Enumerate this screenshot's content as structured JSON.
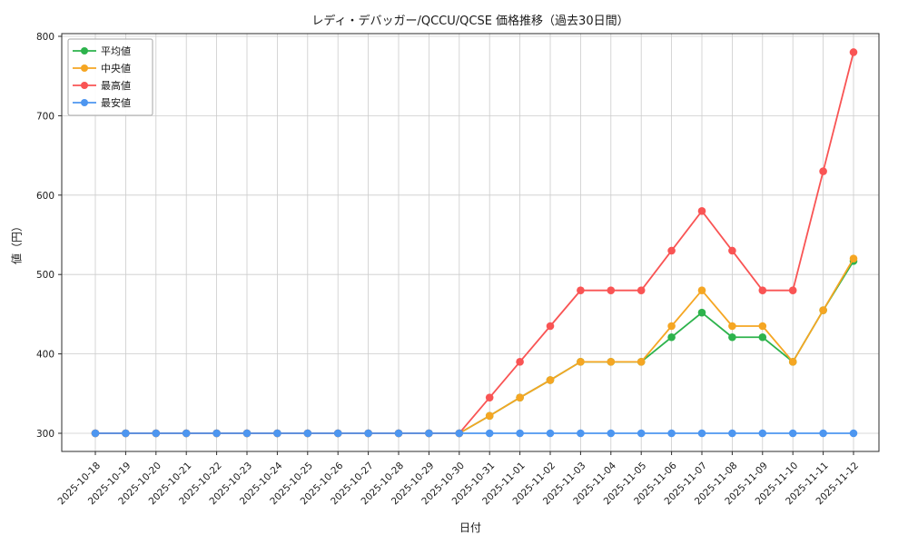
{
  "title": "レディ・デバッガー/QCCU/QCSE 価格推移（過去30日間）",
  "chart_data": {
    "type": "line",
    "title": "レディ・デバッガー/QCCU/QCSE 価格推移（過去30日間）",
    "xlabel": "日付",
    "ylabel": "値（円）",
    "grid": true,
    "legend_position": "upper-left",
    "ylim": [
      300,
      800
    ],
    "yticks": [
      300,
      400,
      500,
      600,
      700,
      800
    ],
    "categories": [
      "2025-10-18",
      "2025-10-19",
      "2025-10-20",
      "2025-10-21",
      "2025-10-22",
      "2025-10-23",
      "2025-10-24",
      "2025-10-25",
      "2025-10-26",
      "2025-10-27",
      "2025-10-28",
      "2025-10-29",
      "2025-10-30",
      "2025-10-31",
      "2025-11-01",
      "2025-11-02",
      "2025-11-03",
      "2025-11-04",
      "2025-11-05",
      "2025-11-06",
      "2025-11-07",
      "2025-11-08",
      "2025-11-09",
      "2025-11-10",
      "2025-11-11",
      "2025-11-12"
    ],
    "series": [
      {
        "name": "平均値",
        "color": "#2db34c",
        "values": [
          300,
          300,
          300,
          300,
          300,
          300,
          300,
          300,
          300,
          300,
          300,
          300,
          300,
          322,
          345,
          367,
          390,
          390,
          390,
          421,
          452,
          421,
          421,
          390,
          455,
          517
        ]
      },
      {
        "name": "中央値",
        "color": "#f5a623",
        "values": [
          300,
          300,
          300,
          300,
          300,
          300,
          300,
          300,
          300,
          300,
          300,
          300,
          300,
          322,
          345,
          367,
          390,
          390,
          390,
          435,
          480,
          435,
          435,
          390,
          455,
          520
        ]
      },
      {
        "name": "最高値",
        "color": "#f95454",
        "values": [
          300,
          300,
          300,
          300,
          300,
          300,
          300,
          300,
          300,
          300,
          300,
          300,
          300,
          345,
          390,
          435,
          480,
          480,
          480,
          530,
          580,
          530,
          480,
          480,
          630,
          780
        ]
      },
      {
        "name": "最安値",
        "color": "#4d96f0",
        "values": [
          300,
          300,
          300,
          300,
          300,
          300,
          300,
          300,
          300,
          300,
          300,
          300,
          300,
          300,
          300,
          300,
          300,
          300,
          300,
          300,
          300,
          300,
          300,
          300,
          300,
          300
        ]
      }
    ]
  }
}
